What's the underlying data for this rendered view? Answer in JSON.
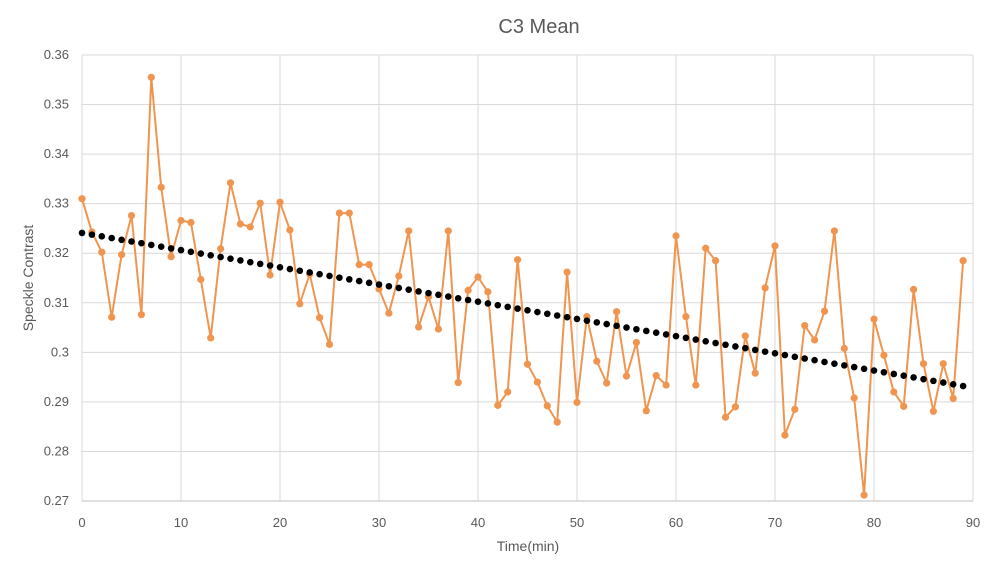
{
  "chart_data": {
    "type": "line",
    "title": "C3 Mean",
    "xlabel": "Time(min)",
    "ylabel": "Speckle Contrast",
    "xlim": [
      0,
      90
    ],
    "ylim": [
      0.27,
      0.36
    ],
    "x_ticks": [
      "0",
      "10",
      "20",
      "30",
      "40",
      "50",
      "60",
      "70",
      "80",
      "90"
    ],
    "y_ticks": [
      "0.27",
      "0.28",
      "0.29",
      "0.3",
      "0.31",
      "0.32",
      "0.33",
      "0.34",
      "0.35",
      "0.36"
    ],
    "grid": true,
    "colors": {
      "series": "#f0954f",
      "trend": "#000000",
      "grid": "#d9d9d9",
      "axis": "#bfbfbf"
    },
    "series": [
      {
        "style": "line-with-markers",
        "x": [
          0,
          1,
          2,
          3,
          4,
          5,
          6,
          7,
          8,
          9,
          10,
          11,
          12,
          13,
          14,
          15,
          16,
          17,
          18,
          19,
          20,
          21,
          22,
          23,
          24,
          25,
          26,
          27,
          28,
          29,
          30,
          31,
          32,
          33,
          34,
          35,
          36,
          37,
          38,
          39,
          40,
          41,
          42,
          43,
          44,
          45,
          46,
          47,
          48,
          49,
          50,
          51,
          52,
          53,
          54,
          55,
          56,
          57,
          58,
          59,
          60,
          61,
          62,
          63,
          64,
          65,
          66,
          67,
          68,
          69,
          70,
          71,
          72,
          73,
          74,
          75,
          76,
          77,
          78,
          79,
          80,
          81,
          82,
          83,
          84,
          85,
          86,
          87,
          88,
          89
        ],
        "values": [
          0.331,
          0.3243,
          0.3202,
          0.3071,
          0.3197,
          0.3276,
          0.3076,
          0.3555,
          0.3333,
          0.3193,
          0.3266,
          0.3262,
          0.3147,
          0.3029,
          0.3209,
          0.3342,
          0.3259,
          0.3253,
          0.3301,
          0.3156,
          0.3303,
          0.3247,
          0.3098,
          0.3158,
          0.307,
          0.3016,
          0.3281,
          0.3281,
          0.3177,
          0.3177,
          0.3128,
          0.3079,
          0.3154,
          0.3245,
          0.3051,
          0.3112,
          0.3047,
          0.3245,
          0.2939,
          0.3125,
          0.3152,
          0.3122,
          0.2893,
          0.292,
          0.3187,
          0.2976,
          0.294,
          0.2892,
          0.2859,
          0.3162,
          0.2899,
          0.3072,
          0.2982,
          0.2938,
          0.3082,
          0.2952,
          0.302,
          0.2882,
          0.2953,
          0.2934,
          0.3235,
          0.3072,
          0.2934,
          0.321,
          0.3185,
          0.2869,
          0.289,
          0.3033,
          0.2958,
          0.313,
          0.3215,
          0.2833,
          0.2885,
          0.3054,
          0.3025,
          0.3083,
          0.3245,
          0.3008,
          0.2908,
          0.2712,
          0.3067,
          0.2994,
          0.292,
          0.2891,
          0.3127,
          0.2977,
          0.2881,
          0.2977,
          0.2907,
          0.3185
        ]
      },
      {
        "style": "dotted-trendline",
        "x_start": 0,
        "x_end": 89,
        "y_start": 0.3241,
        "y_end": 0.2932
      }
    ]
  }
}
